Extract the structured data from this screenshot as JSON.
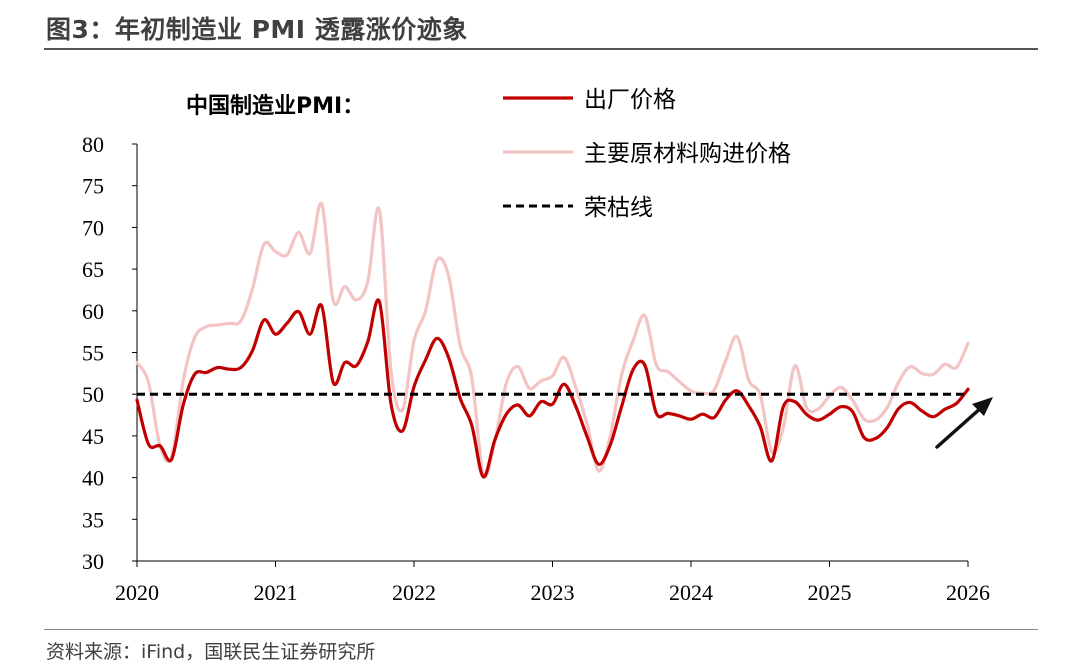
{
  "figure": {
    "title": "图3：年初制造业 PMI 透露涨价迹象",
    "source": "资料来源：iFind，国联民生证券研究所"
  },
  "colors": {
    "output_price": "#c00000",
    "input_price": "#f2c4c4",
    "threshold": "#000000",
    "axis": "#000000",
    "arrow": "#111111"
  },
  "chart_data": {
    "type": "line",
    "title": "中国制造业PMI：",
    "xlabel": "",
    "ylabel": "",
    "ylim": [
      30,
      80
    ],
    "xlim": [
      2020,
      2026
    ],
    "yticks": [
      "80",
      "75",
      "70",
      "65",
      "60",
      "55",
      "50",
      "45",
      "40",
      "35",
      "30"
    ],
    "xticks": [
      "2020",
      "2021",
      "2022",
      "2023",
      "2024",
      "2025",
      "2026"
    ],
    "legend_position": "top-right",
    "series": [
      {
        "name": "出厂价格",
        "style": "solid",
        "values": [
          49.3,
          44.0,
          43.8,
          42.2,
          48.7,
          52.4,
          52.6,
          53.2,
          53.0,
          53.2,
          55.2,
          58.9,
          57.2,
          58.5,
          59.9,
          57.2,
          60.6,
          51.4,
          53.8,
          53.4,
          56.3,
          61.1,
          48.9,
          45.6,
          50.9,
          54.1,
          56.7,
          54.4,
          49.5,
          46.3,
          40.1,
          44.5,
          47.6,
          48.7,
          47.4,
          49.1,
          48.8,
          51.2,
          48.6,
          44.9,
          41.6,
          43.9,
          48.6,
          53.0,
          53.5,
          47.7,
          47.7,
          47.4,
          47.0,
          47.6,
          47.2,
          49.3,
          50.4,
          48.6,
          46.1,
          42.0,
          48.5,
          49.1,
          47.6,
          46.9,
          47.6,
          48.5,
          47.9,
          44.8,
          44.7,
          46.0,
          48.3,
          49.0,
          48.0,
          47.3,
          48.2,
          48.9,
          50.6
        ]
      },
      {
        "name": "主要原材料购进价格",
        "style": "solid",
        "values": [
          53.8,
          51.4,
          43.8,
          42.5,
          51.6,
          56.8,
          58.1,
          58.3,
          58.5,
          58.8,
          62.6,
          68.0,
          67.1,
          66.7,
          69.4,
          66.9,
          72.8,
          61.2,
          62.9,
          61.3,
          63.5,
          72.1,
          52.9,
          48.1,
          56.4,
          60.0,
          66.1,
          64.2,
          55.8,
          52.0,
          40.4,
          44.3,
          51.3,
          53.3,
          50.7,
          51.6,
          52.2,
          54.4,
          50.9,
          46.4,
          40.8,
          45.0,
          52.4,
          56.5,
          59.4,
          53.5,
          52.7,
          51.5,
          50.4,
          50.1,
          50.5,
          54.0,
          56.9,
          51.7,
          49.9,
          43.1,
          46.0,
          53.4,
          48.4,
          48.2,
          49.8,
          50.8,
          49.3,
          47.0,
          46.9,
          48.4,
          51.5,
          53.3,
          52.5,
          52.4,
          53.6,
          53.2,
          56.1
        ]
      },
      {
        "name": "荣枯线",
        "style": "dashed",
        "values": [
          50,
          50
        ]
      }
    ]
  }
}
